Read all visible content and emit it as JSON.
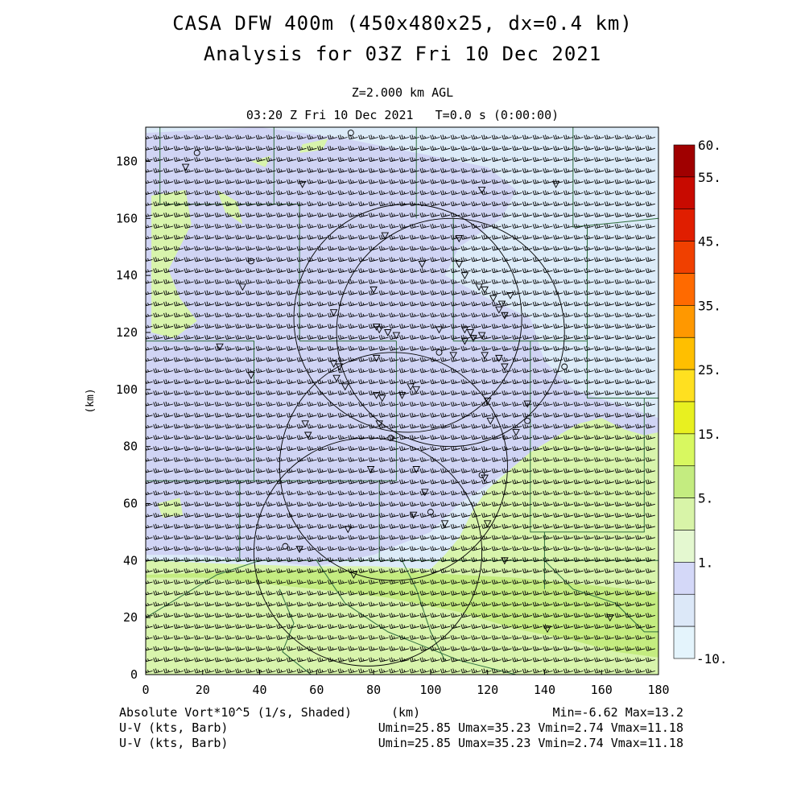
{
  "header": {
    "title_line1": "CASA DFW 400m (450x480x25, dx=0.4 km)",
    "title_line2": "Analysis for 03Z Fri 10 Dec 2021",
    "level": "Z=2.000 km AGL",
    "time": "03:20 Z Fri 10 Dec 2021   T=0.0 s (0:00:00)"
  },
  "footer": {
    "field_label": "Absolute Vort*10^5 (1/s, Shaded)",
    "xunit": "(km)",
    "minmax": "Min=-6.62 Max=13.2",
    "wind1_label": "U-V (kts, Barb)",
    "wind1_stats": "Umin=25.85 Umax=35.23 Vmin=2.74 Vmax=11.18",
    "wind2_label": "U-V (kts, Barb)",
    "wind2_stats": "Umin=25.85 Umax=35.23 Vmin=2.74 Vmax=11.18"
  },
  "chart_data": {
    "type": "heatmap",
    "xlabel": "(km)",
    "ylabel": "(km)",
    "xlim": [
      0,
      180
    ],
    "ylim": [
      0,
      192
    ],
    "xticks": [
      "0",
      "20",
      "40",
      "60",
      "80",
      "100",
      "120",
      "140",
      "160",
      "180"
    ],
    "yticks": [
      "0",
      "20",
      "40",
      "60",
      "80",
      "100",
      "120",
      "140",
      "160",
      "180"
    ],
    "colorbar": {
      "labels": [
        "60.",
        "55.",
        "45.",
        "35.",
        "25.",
        "15.",
        "5.",
        "1.",
        "-10."
      ],
      "colors": [
        "#a00000",
        "#c80a00",
        "#e01e00",
        "#f04000",
        "#ff6a00",
        "#ff9800",
        "#ffbf00",
        "#ffe020",
        "#e8f020",
        "#d8f860",
        "#c4ec80",
        "#d8f4a8",
        "#e4f8d0",
        "#d4d8f8",
        "#dce8f8",
        "#e4f4fc"
      ]
    },
    "field_colors": {
      "blue_light": "#dcebf8",
      "lavender": "#d0d4f4",
      "green": "#c4ec80",
      "green_pale": "#d8f4ac"
    },
    "wind": {
      "u_range_kts": [
        25.85,
        35.23
      ],
      "v_range_kts": [
        2.74,
        11.18
      ]
    },
    "radar_rings": [
      {
        "center": [
          78,
          43
        ],
        "radius_km": 40
      },
      {
        "center": [
          92,
          125
        ],
        "radius_km": 40
      },
      {
        "center": [
          87,
          73
        ],
        "radius_km": 40
      },
      {
        "center": [
          107,
          120
        ],
        "radius_km": 40
      }
    ],
    "stats": {
      "min": -6.62,
      "max": 13.2
    }
  }
}
